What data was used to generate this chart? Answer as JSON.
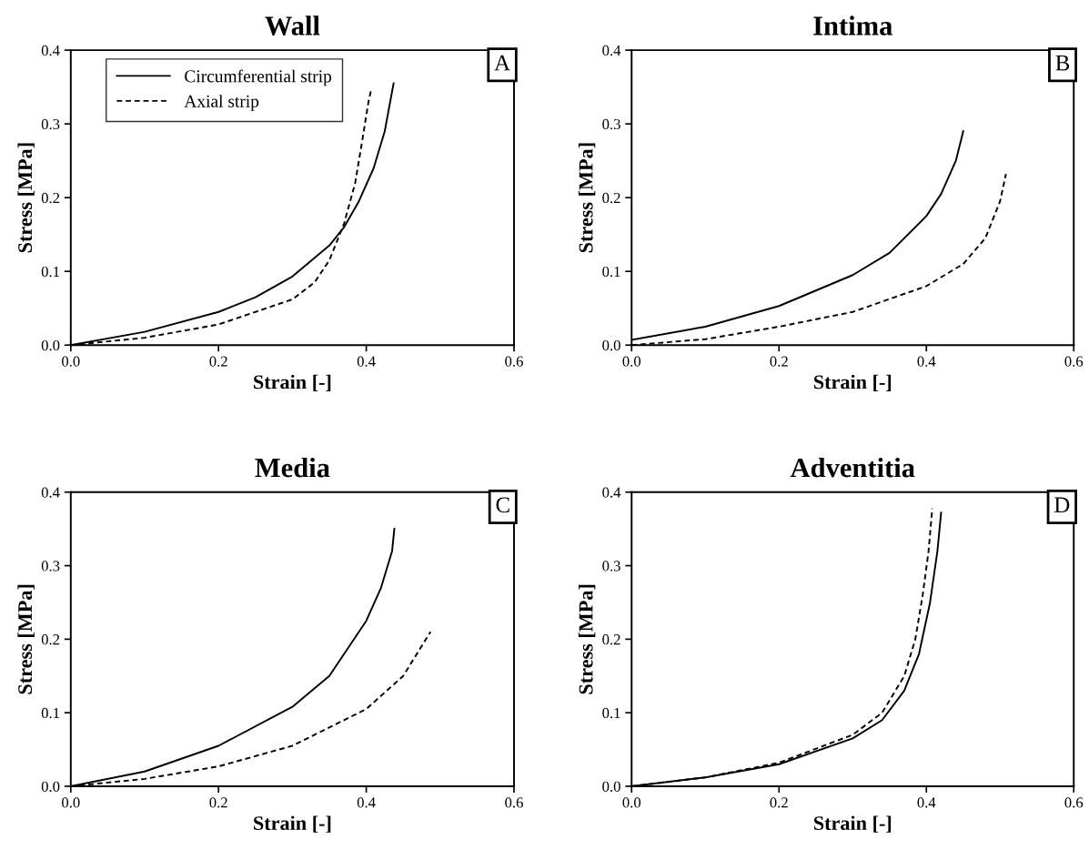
{
  "chart_data": [
    {
      "type": "line",
      "title": "Wall",
      "xlabel": "Strain [-]",
      "ylabel": "Stress [MPa]",
      "annotations": [
        "A"
      ],
      "legend": "top left",
      "xlim": [
        0,
        0.6
      ],
      "ylim": [
        0,
        0.4
      ],
      "xticks": [
        {
          "value": 0,
          "label": "0.0"
        },
        {
          "value": 0.2,
          "label": "0.2"
        },
        {
          "value": 0.4,
          "label": "0.4"
        },
        {
          "value": 0.6,
          "label": "0.6"
        }
      ],
      "yticks": [
        {
          "value": 0,
          "label": "0.0"
        },
        {
          "value": 0.1,
          "label": "0.1"
        },
        {
          "value": 0.2,
          "label": "0.2"
        },
        {
          "value": 0.3,
          "label": "0.3"
        },
        {
          "value": 0.4,
          "label": "0.4"
        }
      ],
      "series": [
        {
          "name": "Circumferential strip",
          "color": "#000000",
          "line_style": "solid",
          "x": [
            0,
            0.1,
            0.2,
            0.25,
            0.3,
            0.35,
            0.37,
            0.39,
            0.41,
            0.425,
            0.437
          ],
          "values": [
            0,
            0.018,
            0.045,
            0.065,
            0.093,
            0.135,
            0.16,
            0.195,
            0.24,
            0.29,
            0.355
          ]
        },
        {
          "name": "Axial strip",
          "color": "#000000",
          "line_style": "dashed",
          "x": [
            0,
            0.1,
            0.2,
            0.3,
            0.33,
            0.35,
            0.37,
            0.385,
            0.395,
            0.403,
            0.407
          ],
          "values": [
            0,
            0.01,
            0.028,
            0.062,
            0.085,
            0.115,
            0.165,
            0.22,
            0.28,
            0.33,
            0.348
          ]
        }
      ]
    },
    {
      "type": "line",
      "title": "Intima",
      "xlabel": "Strain [-]",
      "ylabel": "Stress [MPa]",
      "annotations": [
        "B"
      ],
      "xlim": [
        0,
        0.6
      ],
      "ylim": [
        0,
        0.4
      ],
      "xticks": [
        {
          "value": 0,
          "label": "0.0"
        },
        {
          "value": 0.2,
          "label": "0.2"
        },
        {
          "value": 0.4,
          "label": "0.4"
        },
        {
          "value": 0.6,
          "label": "0.6"
        }
      ],
      "yticks": [
        {
          "value": 0,
          "label": "0.0"
        },
        {
          "value": 0.1,
          "label": "0.1"
        },
        {
          "value": 0.2,
          "label": "0.2"
        },
        {
          "value": 0.3,
          "label": "0.3"
        },
        {
          "value": 0.4,
          "label": "0.4"
        }
      ],
      "series": [
        {
          "color": "#000000",
          "line_style": "solid",
          "x": [
            0,
            0.1,
            0.2,
            0.3,
            0.35,
            0.4,
            0.42,
            0.44,
            0.45
          ],
          "values": [
            0.007,
            0.025,
            0.053,
            0.095,
            0.125,
            0.175,
            0.205,
            0.25,
            0.29
          ]
        },
        {
          "color": "#000000",
          "line_style": "dashed",
          "x": [
            0,
            0.1,
            0.2,
            0.3,
            0.4,
            0.45,
            0.48,
            0.5,
            0.508
          ],
          "values": [
            0,
            0.008,
            0.025,
            0.045,
            0.08,
            0.11,
            0.145,
            0.195,
            0.232
          ]
        }
      ]
    },
    {
      "type": "line",
      "title": "Media",
      "xlabel": "Strain [-]",
      "ylabel": "Stress [MPa]",
      "annotations": [
        "C"
      ],
      "xlim": [
        0,
        0.6
      ],
      "ylim": [
        0,
        0.4
      ],
      "xticks": [
        {
          "value": 0,
          "label": "0.0"
        },
        {
          "value": 0.2,
          "label": "0.2"
        },
        {
          "value": 0.4,
          "label": "0.4"
        },
        {
          "value": 0.6,
          "label": "0.6"
        }
      ],
      "yticks": [
        {
          "value": 0,
          "label": "0.0"
        },
        {
          "value": 0.1,
          "label": "0.1"
        },
        {
          "value": 0.2,
          "label": "0.2"
        },
        {
          "value": 0.3,
          "label": "0.3"
        },
        {
          "value": 0.4,
          "label": "0.4"
        }
      ],
      "series": [
        {
          "color": "#000000",
          "line_style": "solid",
          "x": [
            0,
            0.1,
            0.2,
            0.3,
            0.35,
            0.4,
            0.42,
            0.435,
            0.438
          ],
          "values": [
            0,
            0.02,
            0.055,
            0.108,
            0.15,
            0.225,
            0.27,
            0.32,
            0.35
          ]
        },
        {
          "color": "#000000",
          "line_style": "dashed",
          "x": [
            0,
            0.1,
            0.2,
            0.3,
            0.4,
            0.45,
            0.487
          ],
          "values": [
            0,
            0.01,
            0.027,
            0.055,
            0.105,
            0.15,
            0.21
          ]
        }
      ]
    },
    {
      "type": "line",
      "title": "Adventitia",
      "xlabel": "Strain [-]",
      "ylabel": "Stress [MPa]",
      "annotations": [
        "D"
      ],
      "xlim": [
        0,
        0.6
      ],
      "ylim": [
        0,
        0.4
      ],
      "xticks": [
        {
          "value": 0,
          "label": "0.0"
        },
        {
          "value": 0.2,
          "label": "0.2"
        },
        {
          "value": 0.4,
          "label": "0.4"
        },
        {
          "value": 0.6,
          "label": "0.6"
        }
      ],
      "yticks": [
        {
          "value": 0,
          "label": "0.0"
        },
        {
          "value": 0.1,
          "label": "0.1"
        },
        {
          "value": 0.2,
          "label": "0.2"
        },
        {
          "value": 0.3,
          "label": "0.3"
        },
        {
          "value": 0.4,
          "label": "0.4"
        }
      ],
      "series": [
        {
          "color": "#000000",
          "line_style": "solid",
          "x": [
            0,
            0.1,
            0.2,
            0.3,
            0.34,
            0.37,
            0.39,
            0.405,
            0.415,
            0.42
          ],
          "values": [
            0,
            0.012,
            0.03,
            0.065,
            0.09,
            0.13,
            0.18,
            0.25,
            0.32,
            0.372
          ]
        },
        {
          "color": "#000000",
          "line_style": "dashed",
          "x": [
            0,
            0.1,
            0.2,
            0.3,
            0.34,
            0.37,
            0.385,
            0.395,
            0.403,
            0.408
          ],
          "values": [
            0,
            0.012,
            0.032,
            0.07,
            0.1,
            0.15,
            0.2,
            0.26,
            0.32,
            0.378
          ]
        }
      ]
    }
  ]
}
